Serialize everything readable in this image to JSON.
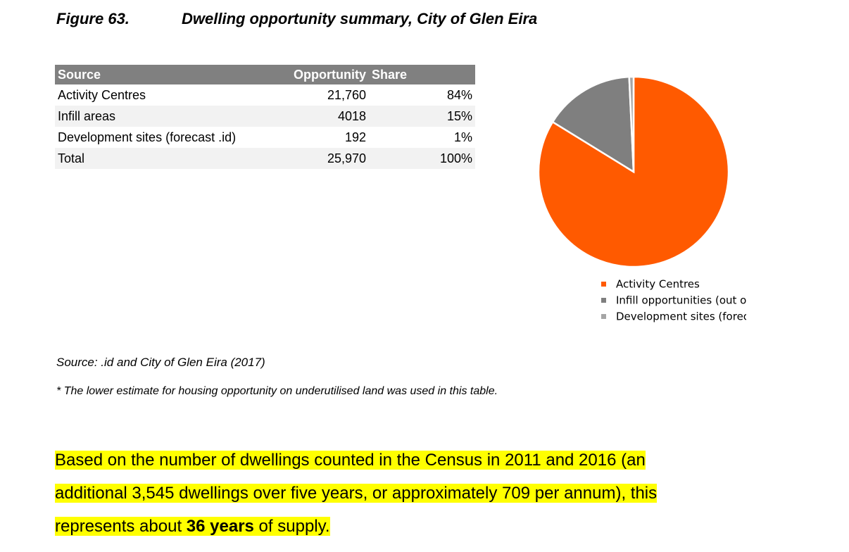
{
  "figure": {
    "label": "Figure 63.",
    "title": "Dwelling opportunity summary, City of Glen Eira"
  },
  "table": {
    "headers": [
      "Source",
      "Opportunity",
      "Share"
    ],
    "rows": [
      [
        "Activity Centres",
        "21,760",
        "84%"
      ],
      [
        "Infill areas",
        "4018",
        "15%"
      ],
      [
        "Development sites (forecast .id)",
        "192",
        "1%"
      ],
      [
        "Total",
        "25,970",
        "100%"
      ]
    ]
  },
  "chart_data": {
    "type": "pie",
    "categories": [
      "Activity Centres",
      "Infill opportunities (out of centre)",
      "Development sites (forecast.id)"
    ],
    "values": [
      21760,
      4018,
      192
    ],
    "colors": [
      "#ff5a00",
      "#7f7f7f",
      "#a5a5a5"
    ]
  },
  "source": "Source:  .id and City of Glen Eira (2017)",
  "note": "* The lower estimate for housing opportunity on underutilised land was used in this table.",
  "paragraph": {
    "lines": [
      "Based on the number of dwellings counted in the Census in 2011 and 2016 (an",
      "additional 3,545 dwellings over five years, or approximately 709 per annum), this"
    ],
    "before": "represents about ",
    "bold": "36 years",
    "after": " of supply."
  }
}
